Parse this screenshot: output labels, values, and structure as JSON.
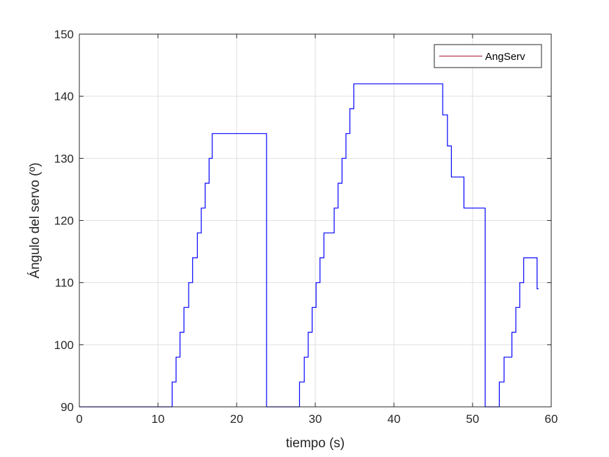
{
  "chart_data": {
    "type": "line",
    "title": "",
    "xlabel": "tiempo (s)",
    "ylabel": "Ángulo del servo (º)",
    "xlim": [
      0,
      60
    ],
    "ylim": [
      90,
      150
    ],
    "xticks": [
      0,
      10,
      20,
      30,
      40,
      50,
      60
    ],
    "yticks": [
      90,
      100,
      110,
      120,
      130,
      140,
      150
    ],
    "grid": true,
    "legend_position": "top-right",
    "series": [
      {
        "name": "AngServ",
        "line_color": "#0000ff",
        "legend_swatch_color": "#a2142f",
        "step": true,
        "points": [
          [
            0,
            90
          ],
          [
            11.8,
            90
          ],
          [
            11.8,
            94
          ],
          [
            12.3,
            94
          ],
          [
            12.3,
            98
          ],
          [
            12.8,
            98
          ],
          [
            12.8,
            102
          ],
          [
            13.3,
            102
          ],
          [
            13.3,
            106
          ],
          [
            13.9,
            106
          ],
          [
            13.9,
            110
          ],
          [
            14.4,
            110
          ],
          [
            14.4,
            114
          ],
          [
            15.0,
            114
          ],
          [
            15.0,
            118
          ],
          [
            15.5,
            118
          ],
          [
            15.5,
            122
          ],
          [
            16.0,
            122
          ],
          [
            16.0,
            126
          ],
          [
            16.5,
            126
          ],
          [
            16.5,
            130
          ],
          [
            16.9,
            130
          ],
          [
            16.9,
            134
          ],
          [
            23.8,
            134
          ],
          [
            23.8,
            90
          ],
          [
            28.0,
            90
          ],
          [
            28.0,
            94
          ],
          [
            28.6,
            94
          ],
          [
            28.6,
            98
          ],
          [
            29.1,
            98
          ],
          [
            29.1,
            102
          ],
          [
            29.6,
            102
          ],
          [
            29.6,
            106
          ],
          [
            30.1,
            106
          ],
          [
            30.1,
            110
          ],
          [
            30.6,
            110
          ],
          [
            30.6,
            114
          ],
          [
            31.1,
            114
          ],
          [
            31.1,
            118
          ],
          [
            32.4,
            118
          ],
          [
            32.4,
            122
          ],
          [
            32.9,
            122
          ],
          [
            32.9,
            126
          ],
          [
            33.4,
            126
          ],
          [
            33.4,
            130
          ],
          [
            33.9,
            130
          ],
          [
            33.9,
            134
          ],
          [
            34.4,
            134
          ],
          [
            34.4,
            138
          ],
          [
            34.9,
            138
          ],
          [
            34.9,
            142
          ],
          [
            46.2,
            142
          ],
          [
            46.2,
            137
          ],
          [
            46.8,
            137
          ],
          [
            46.8,
            132
          ],
          [
            47.3,
            132
          ],
          [
            47.3,
            127
          ],
          [
            48.9,
            127
          ],
          [
            48.9,
            122
          ],
          [
            51.6,
            122
          ],
          [
            51.6,
            90
          ],
          [
            53.4,
            90
          ],
          [
            53.4,
            94
          ],
          [
            54.0,
            94
          ],
          [
            54.0,
            98
          ],
          [
            55.0,
            98
          ],
          [
            55.0,
            102
          ],
          [
            55.5,
            102
          ],
          [
            55.5,
            106
          ],
          [
            56.0,
            106
          ],
          [
            56.0,
            110
          ],
          [
            56.5,
            110
          ],
          [
            56.5,
            114
          ],
          [
            58.2,
            114
          ],
          [
            58.2,
            109
          ],
          [
            58.4,
            109
          ]
        ]
      }
    ]
  }
}
